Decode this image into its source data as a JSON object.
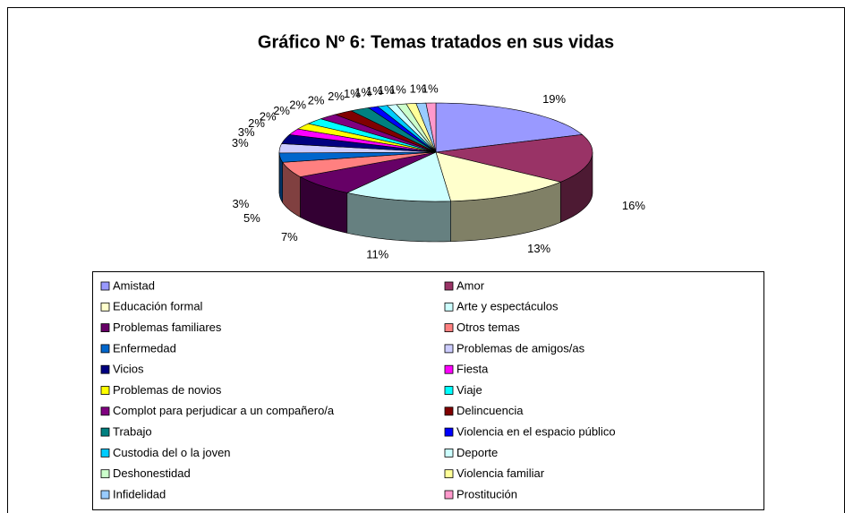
{
  "chart_data": {
    "type": "pie",
    "title": "Gráfico Nº 6: Temas tratados en sus vidas",
    "categories": [
      "Amistad",
      "Amor",
      "Educación formal",
      "Arte y espectáculos",
      "Problemas familiares",
      "Otros temas",
      "Enfermedad",
      "Problemas de amigos/as",
      "Vicios",
      "Fiesta",
      "Problemas de novios",
      "Viaje",
      "Complot para perjudicar a un compañero/a",
      "Delincuencia",
      "Trabajo",
      "Violencia en el espacio público",
      "Custodia del o la joven",
      "Deporte",
      "Deshonestidad",
      "Violencia familiar",
      "Infidelidad",
      "Prostitución"
    ],
    "values": [
      19,
      16,
      13,
      11,
      7,
      5,
      3,
      3,
      3,
      2,
      2,
      2,
      2,
      2,
      2,
      1,
      1,
      1,
      1,
      1,
      1,
      1
    ],
    "value_labels": [
      "19%",
      "16%",
      "13%",
      "11%",
      "7%",
      "5%",
      "3%",
      "3%",
      "3%",
      "2%",
      "2%",
      "2%",
      "2%",
      "2%",
      "2%",
      "1%",
      "1%",
      "1%",
      "1%",
      "1%",
      "1%",
      "1%"
    ],
    "colors": [
      "#9999FF",
      "#993366",
      "#FFFFCC",
      "#CCFFFF",
      "#660066",
      "#FF8080",
      "#0066CC",
      "#CCCCFF",
      "#000080",
      "#FF00FF",
      "#FFFF00",
      "#00FFFF",
      "#800080",
      "#800000",
      "#008080",
      "#0000FF",
      "#00CCFF",
      "#CCFFFF",
      "#CCFFCC",
      "#FFFF99",
      "#99CCFF",
      "#FF99CC"
    ],
    "legend": "bottom"
  }
}
